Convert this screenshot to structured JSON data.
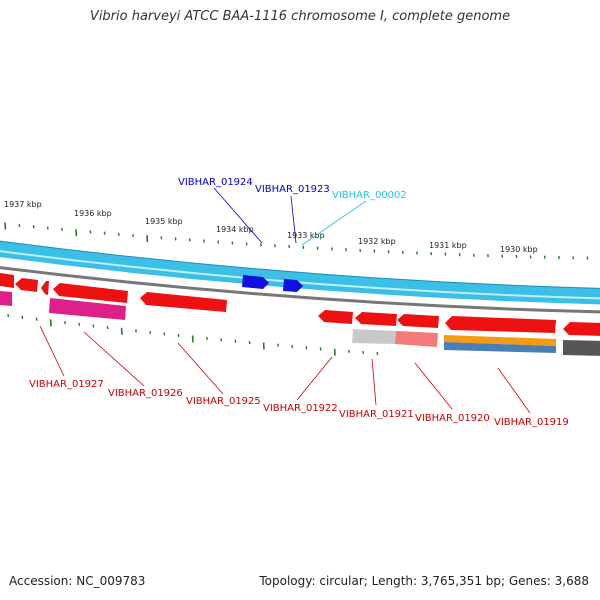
{
  "title": "Vibrio harveyi ATCC BAA-1116 chromosome I, complete genome",
  "footer": {
    "accession": "Accession: NC_009783",
    "summary": "Topology: circular; Length: 3,765,351 bp; Genes: 3,688"
  },
  "colors": {
    "backbone": "#3bbfe6",
    "backbone_light": "#bfeefb",
    "backbone_dark": "#1a8fb8",
    "gray_track": "#777777",
    "tick": "#2a7a2a",
    "forward_gene": "#1010e0",
    "reverse_gene": "#ee1111",
    "label_forward": "#0000cc",
    "label_reverse": "#cc0000",
    "label_cyan": "#22c4e8",
    "magenta": "#e0208a",
    "orange": "#f39c12",
    "steelblue": "#4a7fb5",
    "light_gray": "#c8c8c8",
    "pink": "#f27a7a",
    "dark_gray": "#555555"
  },
  "scale_labels": [
    "1937 kbp",
    "1936 kbp",
    "1935 kbp",
    "1934 kbp",
    "1933 kbp",
    "1932 kbp",
    "1931 kbp",
    "1930 kbp"
  ],
  "forward_labels": [
    {
      "text": "VIBHAR_01924",
      "color": "#0000cc"
    },
    {
      "text": "VIBHAR_01923",
      "color": "#0000cc"
    },
    {
      "text": "VIBHAR_00002",
      "color": "#22c4e8"
    }
  ],
  "reverse_labels": [
    "VIBHAR_01927",
    "VIBHAR_01926",
    "VIBHAR_01925",
    "VIBHAR_01922",
    "VIBHAR_01921",
    "VIBHAR_01920",
    "VIBHAR_01919"
  ]
}
